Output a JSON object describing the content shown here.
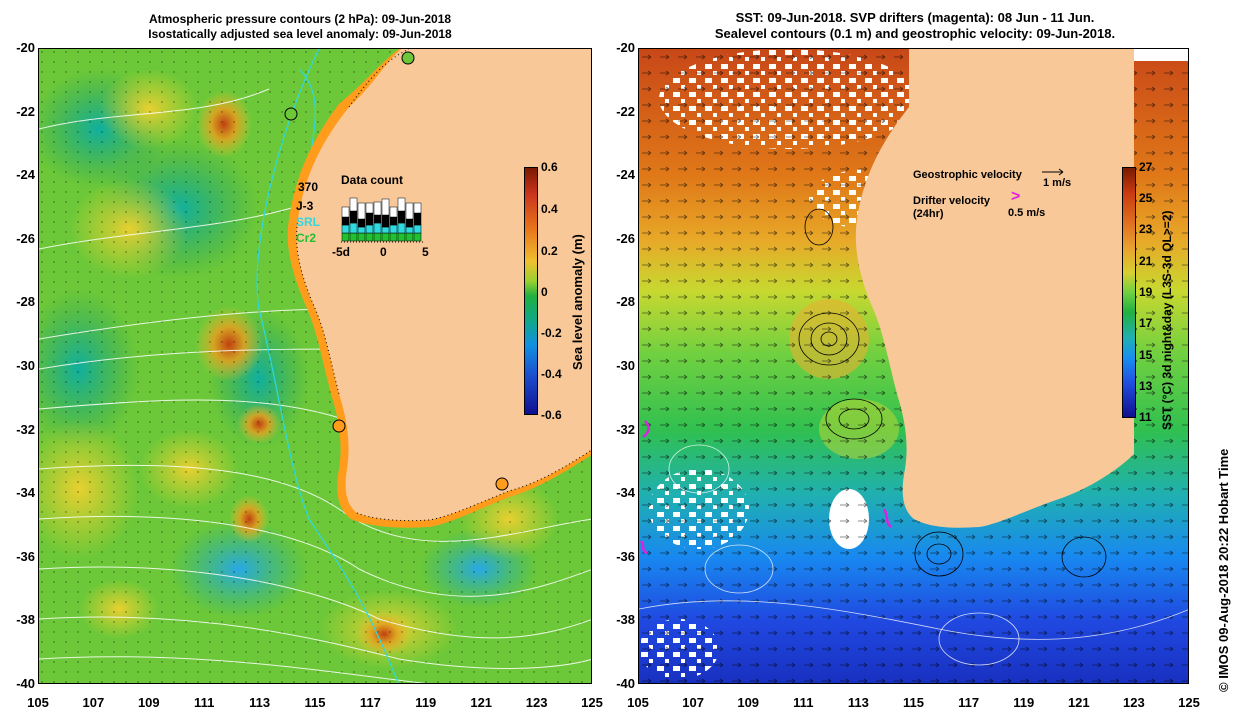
{
  "left_panel": {
    "title_line1": "Atmospheric pressure contours (2 hPa): 09-Jun-2018",
    "title_line2": "Isostatically adjusted sea level anomaly: 09-Jun-2018",
    "colorbar_label": "Sea level anomaly (m)",
    "colorbar_ticks": [
      "0.6",
      "0.4",
      "0.2",
      "0",
      "-0.2",
      "-0.4",
      "-0.6"
    ],
    "data_count": {
      "title": "Data count",
      "max_label": "370",
      "mission_1": "J-3",
      "mission_2": "SRL",
      "mission_3": "Cr2",
      "axis_ticks": [
        "-5d",
        "0",
        "5"
      ]
    }
  },
  "right_panel": {
    "title_line1": "SST: 09-Jun-2018. SVP drifters (magenta): 08 Jun - 11 Jun.",
    "title_line2": "Sealevel contours (0.1 m) and geostrophic velocity: 09-Jun-2018.",
    "colorbar_label": "SST (°C) 3d night&day (L3S-3d QL>=2)",
    "colorbar_ticks": [
      "27",
      "25",
      "23",
      "21",
      "19",
      "17",
      "15",
      "13",
      "11"
    ],
    "legend": {
      "geo_label": "Geostrophic velocity",
      "geo_scale": "1 m/s",
      "drifter_label": "Drifter velocity",
      "drifter_sub": "(24hr)",
      "drifter_scale": "0.5 m/s",
      "drifter_symbol": ">"
    }
  },
  "y_axis_labels": [
    "-20",
    "-22",
    "-24",
    "-26",
    "-28",
    "-30",
    "-32",
    "-34",
    "-36",
    "-38",
    "-40"
  ],
  "x_axis_labels": [
    "105",
    "107",
    "109",
    "111",
    "113",
    "115",
    "117",
    "119",
    "121",
    "123",
    "125"
  ],
  "footer": "©  IMOS 09-Aug-2018 20:22 Hobart Time",
  "colors": {
    "land": "#f9c898",
    "drifter": "#e020e0",
    "coast_line": "#30d8e0"
  }
}
